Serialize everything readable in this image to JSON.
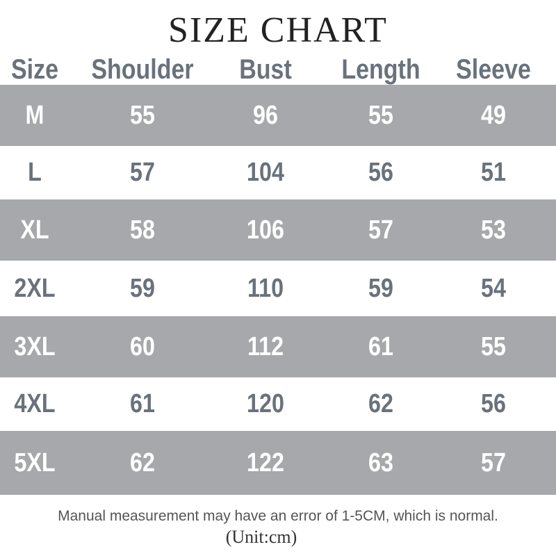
{
  "title": "SIZE CHART",
  "headers": [
    "Size",
    "Shoulder",
    "Bust",
    "Length",
    "Sleeve"
  ],
  "rows": [
    [
      "M",
      "55",
      "96",
      "55",
      "49"
    ],
    [
      "L",
      "57",
      "104",
      "56",
      "51"
    ],
    [
      "XL",
      "58",
      "106",
      "57",
      "53"
    ],
    [
      "2XL",
      "59",
      "110",
      "59",
      "54"
    ],
    [
      "3XL",
      "60",
      "112",
      "61",
      "55"
    ],
    [
      "4XL",
      "61",
      "120",
      "62",
      "56"
    ],
    [
      "5XL",
      "62",
      "122",
      "63",
      "57"
    ]
  ],
  "note": "Manual measurement may have an error of 1-5CM, which is normal.",
  "unit": "(Unit:cm)",
  "colors": {
    "band": "#a6a8ab",
    "text": "#69727c"
  }
}
